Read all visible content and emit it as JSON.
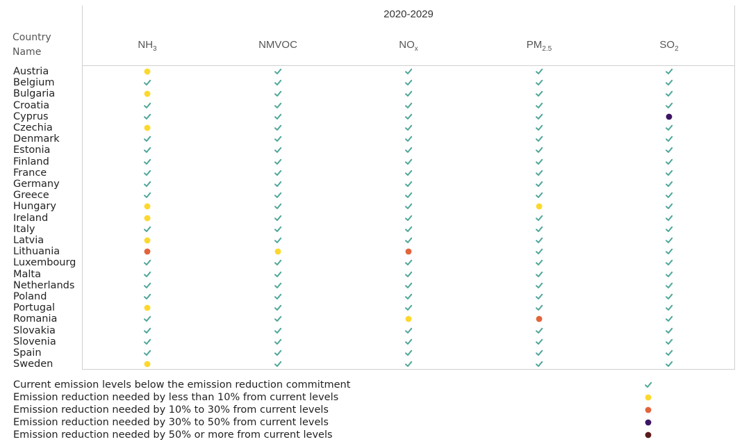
{
  "chart_data": {
    "type": "table",
    "period": "2020-2029",
    "row_header": "Country Name",
    "pollutants": [
      {
        "base": "NH",
        "sub": "3"
      },
      {
        "base": "NMVOC",
        "sub": ""
      },
      {
        "base": "NO",
        "sub": "x"
      },
      {
        "base": "PM",
        "sub": "2.5"
      },
      {
        "base": "SO",
        "sub": "2"
      }
    ],
    "countries": [
      "Austria",
      "Belgium",
      "Bulgaria",
      "Croatia",
      "Cyprus",
      "Czechia",
      "Denmark",
      "Estonia",
      "Finland",
      "France",
      "Germany",
      "Greece",
      "Hungary",
      "Ireland",
      "Italy",
      "Latvia",
      "Lithuania",
      "Luxembourg",
      "Malta",
      "Netherlands",
      "Poland",
      "Portugal",
      "Romania",
      "Slovakia",
      "Slovenia",
      "Spain",
      "Sweden"
    ],
    "status_matrix": [
      [
        "lt10",
        "ok",
        "ok",
        "ok",
        "ok"
      ],
      [
        "ok",
        "ok",
        "ok",
        "ok",
        "ok"
      ],
      [
        "lt10",
        "ok",
        "ok",
        "ok",
        "ok"
      ],
      [
        "ok",
        "ok",
        "ok",
        "ok",
        "ok"
      ],
      [
        "ok",
        "ok",
        "ok",
        "ok",
        "30to50"
      ],
      [
        "lt10",
        "ok",
        "ok",
        "ok",
        "ok"
      ],
      [
        "ok",
        "ok",
        "ok",
        "ok",
        "ok"
      ],
      [
        "ok",
        "ok",
        "ok",
        "ok",
        "ok"
      ],
      [
        "ok",
        "ok",
        "ok",
        "ok",
        "ok"
      ],
      [
        "ok",
        "ok",
        "ok",
        "ok",
        "ok"
      ],
      [
        "ok",
        "ok",
        "ok",
        "ok",
        "ok"
      ],
      [
        "ok",
        "ok",
        "ok",
        "ok",
        "ok"
      ],
      [
        "lt10",
        "ok",
        "ok",
        "lt10",
        "ok"
      ],
      [
        "lt10",
        "ok",
        "ok",
        "ok",
        "ok"
      ],
      [
        "ok",
        "ok",
        "ok",
        "ok",
        "ok"
      ],
      [
        "lt10",
        "ok",
        "ok",
        "ok",
        "ok"
      ],
      [
        "10to30",
        "lt10",
        "10to30",
        "ok",
        "ok"
      ],
      [
        "ok",
        "ok",
        "ok",
        "ok",
        "ok"
      ],
      [
        "ok",
        "ok",
        "ok",
        "ok",
        "ok"
      ],
      [
        "ok",
        "ok",
        "ok",
        "ok",
        "ok"
      ],
      [
        "ok",
        "ok",
        "ok",
        "ok",
        "ok"
      ],
      [
        "lt10",
        "ok",
        "ok",
        "ok",
        "ok"
      ],
      [
        "ok",
        "ok",
        "lt10",
        "10to30",
        "ok"
      ],
      [
        "ok",
        "ok",
        "ok",
        "ok",
        "ok"
      ],
      [
        "ok",
        "ok",
        "ok",
        "ok",
        "ok"
      ],
      [
        "ok",
        "ok",
        "ok",
        "ok",
        "ok"
      ],
      [
        "lt10",
        "ok",
        "ok",
        "ok",
        "ok"
      ]
    ],
    "legend": [
      {
        "key": "ok",
        "label": "Current emission levels below the emission reduction commitment",
        "color": "#4fa69a",
        "shape": "check"
      },
      {
        "key": "lt10",
        "label": "Emission reduction needed by less than 10% from current levels",
        "color": "#fcd82d",
        "shape": "dot"
      },
      {
        "key": "10to30",
        "label": "Emission reduction needed by 10% to 30% from current levels",
        "color": "#e2643b",
        "shape": "dot"
      },
      {
        "key": "30to50",
        "label": "Emission reduction needed by 30% to 50% from current levels",
        "color": "#3c1563",
        "shape": "dot"
      },
      {
        "key": "gt50",
        "label": "Emission reduction needed by 50% or more from current levels",
        "color": "#5b1a1a",
        "shape": "dot"
      }
    ]
  }
}
